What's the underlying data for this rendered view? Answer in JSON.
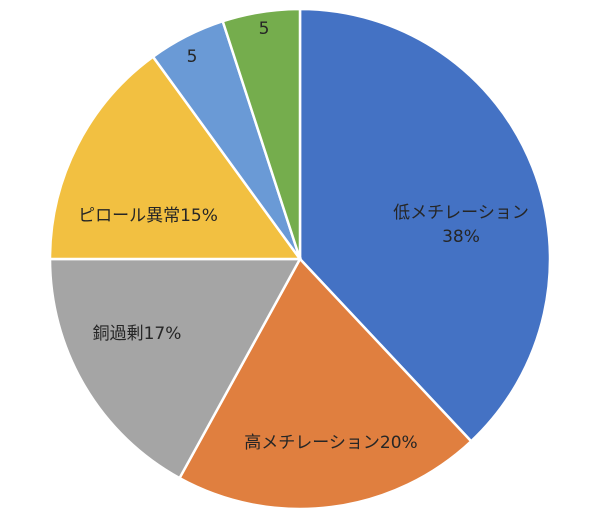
{
  "chart_data": {
    "type": "pie",
    "slices": [
      {
        "label": "低メチレーション",
        "value": 38,
        "display": "38%",
        "color": "#4472c4"
      },
      {
        "label": "高メチレーション",
        "value": 20,
        "display": "20%",
        "color": "#e07f3f"
      },
      {
        "label": "銅過剰",
        "value": 17,
        "display": "17%",
        "color": "#a5a5a5"
      },
      {
        "label": "ピロール異常",
        "value": 15,
        "display": "15%",
        "color": "#f2c041"
      },
      {
        "label": "",
        "value": 5,
        "display": "5",
        "color": "#6a9ad6"
      },
      {
        "label": "",
        "value": 5,
        "display": "5",
        "color": "#75ad4d"
      }
    ],
    "start_angle_deg": 0,
    "direction": "clockwise"
  }
}
